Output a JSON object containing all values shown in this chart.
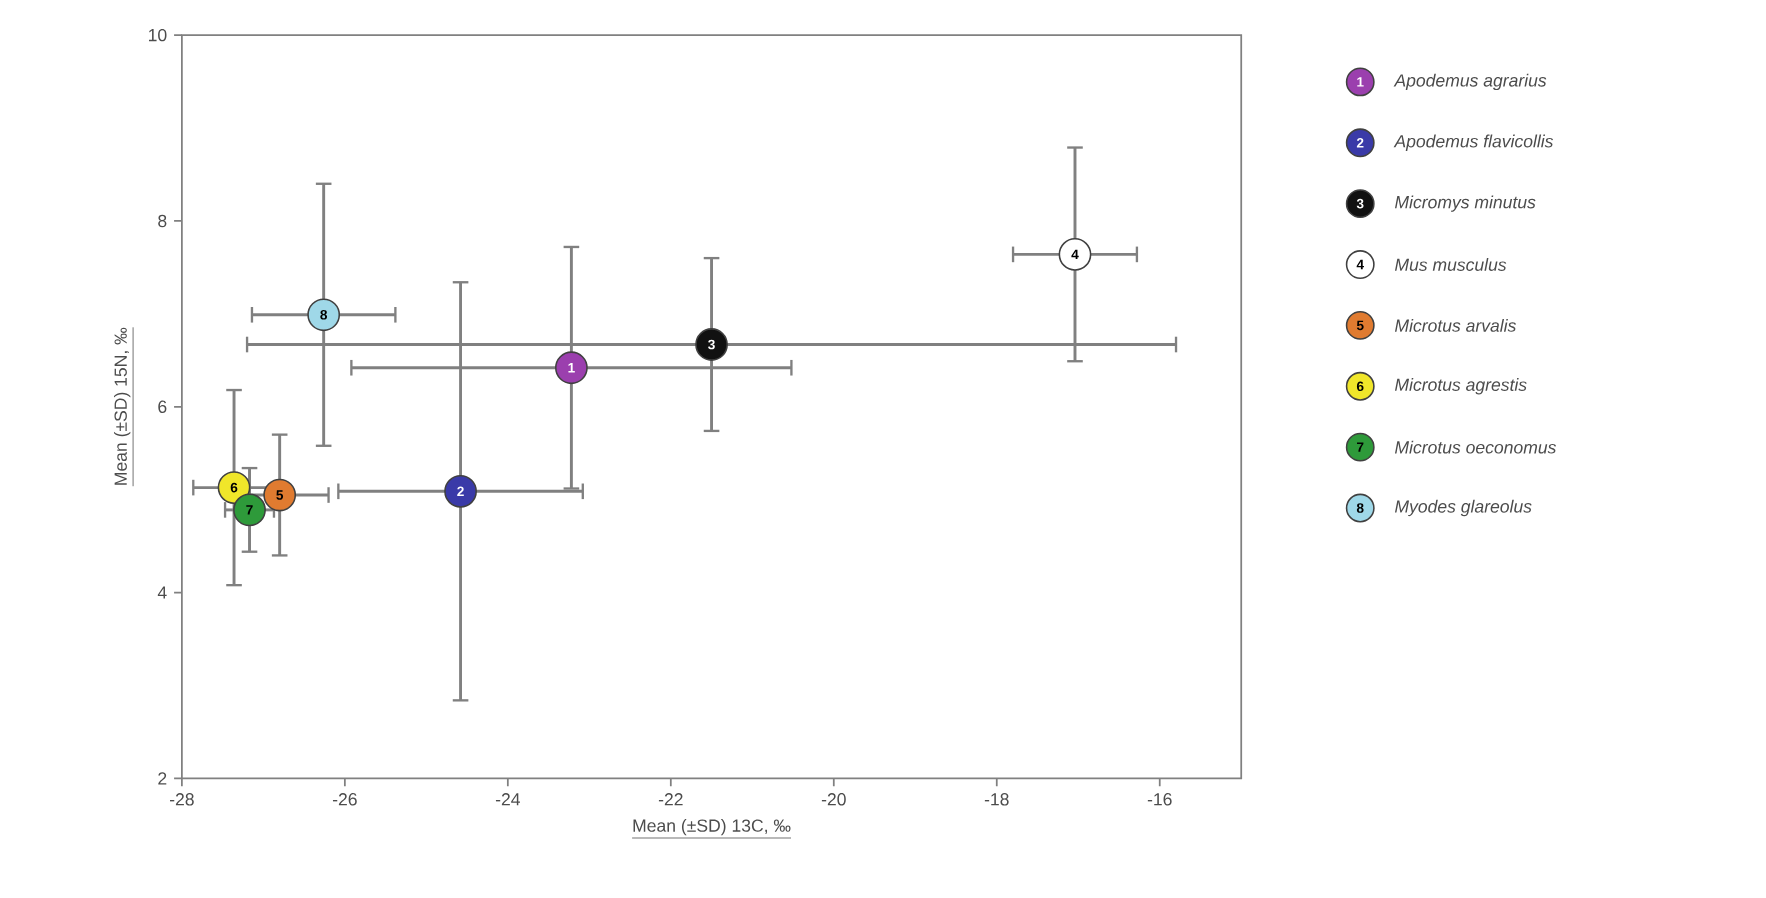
{
  "chart_data": {
    "type": "scatter",
    "xlabel": "Mean (±SD) 13C, ‰",
    "ylabel": "Mean (±SD) 15N, ‰",
    "xlim": [
      -28,
      -15
    ],
    "ylim": [
      2,
      10
    ],
    "xticks": [
      -28,
      -26,
      -24,
      -22,
      -20,
      -18,
      -16
    ],
    "yticks": [
      2,
      4,
      6,
      8,
      10
    ],
    "grid": false,
    "legend": "right",
    "marker": "circle",
    "series": [
      {
        "name": "Apodemus agrarius",
        "color": "#9b3fae",
        "x": [
          -23.22
        ],
        "values": [
          6.42
        ],
        "xerrors": [
          2.7
        ],
        "errors": [
          1.3
        ]
      },
      {
        "name": "Apodemus flavicollis",
        "color": "#3a3aa8",
        "x": [
          -24.58
        ],
        "values": [
          5.09
        ],
        "xerrors": [
          1.5
        ],
        "errors": [
          2.25
        ]
      },
      {
        "name": "Micromys minutus",
        "color": "#111111",
        "x": [
          -21.5
        ],
        "values": [
          6.67
        ],
        "xerrors": [
          5.7
        ],
        "errors": [
          0.93
        ]
      },
      {
        "name": "Mus musculus",
        "color": "#ffffff",
        "x": [
          -17.04
        ],
        "values": [
          7.64
        ],
        "xerrors": [
          0.76
        ],
        "errors": [
          1.15
        ]
      },
      {
        "name": "Microtus arvalis",
        "color": "#e07b30",
        "x": [
          -26.8
        ],
        "values": [
          5.05
        ],
        "xerrors": [
          0.6
        ],
        "errors": [
          0.65
        ]
      },
      {
        "name": "Microtus agrestis",
        "color": "#f0e62a",
        "x": [
          -27.36
        ],
        "values": [
          5.13
        ],
        "xerrors": [
          0.5
        ],
        "errors": [
          1.05
        ]
      },
      {
        "name": "Microtus oeconomus",
        "color": "#2e9a3a",
        "x": [
          -27.17
        ],
        "values": [
          4.89
        ],
        "xerrors": [
          0.3
        ],
        "errors": [
          0.45
        ]
      },
      {
        "name": "Myodes glareolus",
        "color": "#9fd8e8",
        "x": [
          -26.26
        ],
        "values": [
          6.99
        ],
        "xerrors": [
          0.88
        ],
        "errors": [
          1.41
        ]
      }
    ],
    "annotations": [
      {
        "text": "1",
        "x": -23.22,
        "y": 6.42
      },
      {
        "text": "2",
        "x": -24.58,
        "y": 5.09
      },
      {
        "text": "3",
        "x": -21.5,
        "y": 6.67
      },
      {
        "text": "4",
        "x": -17.04,
        "y": 7.64
      },
      {
        "text": "5",
        "x": -26.8,
        "y": 5.05
      },
      {
        "text": "6",
        "x": -27.36,
        "y": 5.13
      },
      {
        "text": "7",
        "x": -27.17,
        "y": 4.89
      },
      {
        "text": "8",
        "x": -26.26,
        "y": 6.99
      }
    ]
  }
}
